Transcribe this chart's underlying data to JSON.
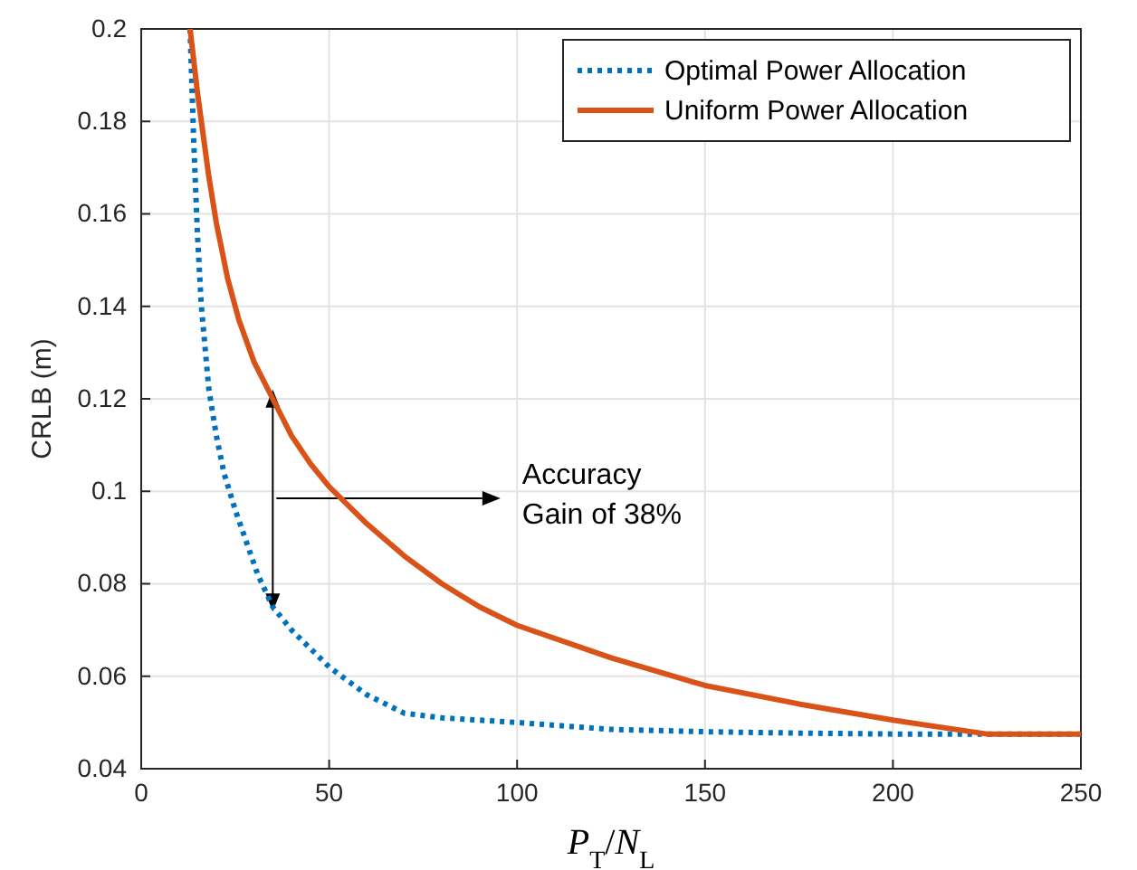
{
  "chart_data": {
    "type": "line",
    "xlabel": "P$_{T}$/N$_{L}$",
    "ylabel": "CRLB (m)",
    "xlim": [
      0,
      250
    ],
    "ylim": [
      0.04,
      0.2
    ],
    "xticks": [
      0,
      50,
      100,
      150,
      200,
      250
    ],
    "yticks": [
      0.04,
      0.06,
      0.08,
      0.1,
      0.12,
      0.14,
      0.16,
      0.18,
      0.2
    ],
    "grid": true,
    "legend": "top right",
    "marker": "none",
    "series": [
      {
        "name": "Optimal Power Allocation",
        "color": "#0072bd",
        "line_style": "dotted",
        "x": [
          13,
          14,
          15,
          16,
          18,
          20,
          22,
          25,
          28,
          31,
          35,
          40,
          45,
          50,
          55,
          60,
          65,
          70,
          80,
          100,
          125,
          150,
          175,
          200,
          225,
          250
        ],
        "values": [
          0.2,
          0.175,
          0.155,
          0.14,
          0.122,
          0.112,
          0.104,
          0.096,
          0.089,
          0.082,
          0.075,
          0.07,
          0.066,
          0.062,
          0.059,
          0.056,
          0.054,
          0.052,
          0.051,
          0.05,
          0.0485,
          0.048,
          0.0477,
          0.0475,
          0.0475,
          0.0475
        ]
      },
      {
        "name": "Uniform Power Allocation",
        "color": "#d95319",
        "line_style": "solid",
        "x": [
          13,
          15,
          18,
          20,
          23,
          26,
          30,
          35,
          40,
          45,
          50,
          60,
          70,
          80,
          90,
          100,
          125,
          150,
          175,
          200,
          225,
          235,
          250
        ],
        "values": [
          0.2,
          0.186,
          0.168,
          0.158,
          0.146,
          0.137,
          0.128,
          0.12,
          0.112,
          0.106,
          0.101,
          0.093,
          0.086,
          0.08,
          0.075,
          0.071,
          0.064,
          0.058,
          0.054,
          0.0505,
          0.0475,
          0.0475,
          0.0475
        ]
      }
    ],
    "annotations": [
      "Accuracy\nGain of 38%"
    ]
  }
}
